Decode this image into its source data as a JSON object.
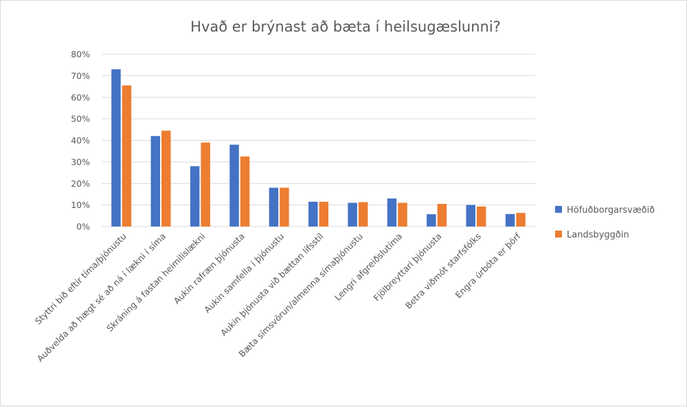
{
  "chart_data": {
    "type": "bar",
    "title": "Hvað er brýnast að bæta í heilsugæslunni?",
    "xlabel": "",
    "ylabel": "",
    "ylim": [
      0,
      0.8
    ],
    "yticks": [
      "0%",
      "10%",
      "20%",
      "30%",
      "40%",
      "50%",
      "60%",
      "70%",
      "80%"
    ],
    "grid": true,
    "legend_position": "right",
    "categories": [
      "Styttri bið eftir tíma/þjónustu",
      "Auðvelda að hægt sé að ná í lækni í síma",
      "Skráning á fastan heimilislækni",
      "Aukin rafræn þjónusta",
      "Aukin samfella í þjónustu",
      "Aukin þjónusta við bættan lífsstíl",
      "Bæta símsvörun/almenna símaþjónustu",
      "Lengri afgreiðslutíma",
      "Fjölbreyttari þjónusta",
      "Betra viðmót starfsfólks",
      "Engra úrbóta er þörf"
    ],
    "series": [
      {
        "name": "Höfuðborgarsvæðið",
        "color": "#4472c4",
        "values": [
          0.73,
          0.42,
          0.28,
          0.38,
          0.18,
          0.115,
          0.11,
          0.13,
          0.057,
          0.1,
          0.058
        ]
      },
      {
        "name": "Landsbyggðin",
        "color": "#ed7d31",
        "values": [
          0.655,
          0.445,
          0.39,
          0.325,
          0.18,
          0.115,
          0.113,
          0.11,
          0.105,
          0.093,
          0.063
        ]
      }
    ]
  }
}
